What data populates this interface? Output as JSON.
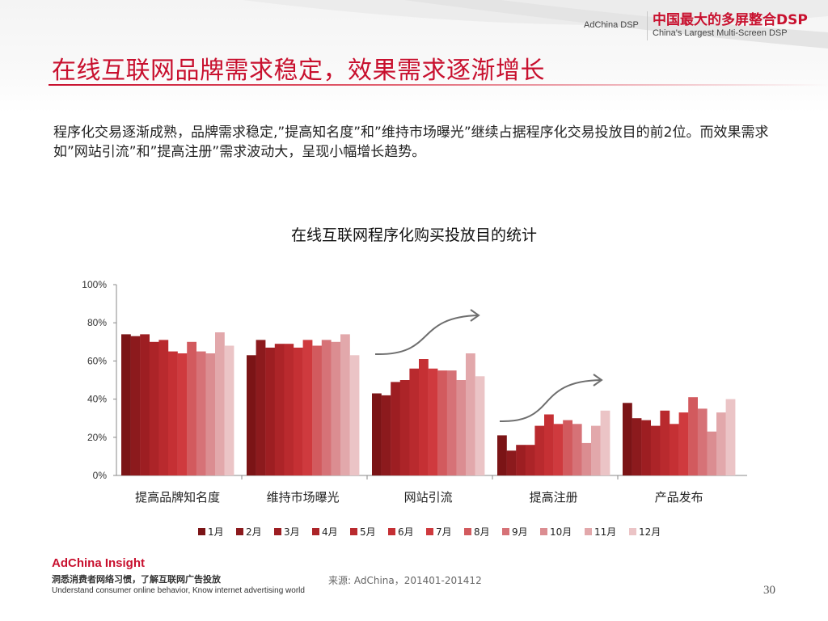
{
  "header": {
    "brand_left": "AdChina DSP",
    "brand_cn": "中国最大的多屏整合DSP",
    "brand_en": "China's Largest Multi-Screen DSP"
  },
  "title": "在线互联网品牌需求稳定，效果需求逐渐增长",
  "summary": "程序化交易逐渐成熟，品牌需求稳定,”提高知名度”和”维持市场曝光”继续占据程序化交易投放目的前2位。而效果需求如”网站引流”和”提高注册”需求波动大，呈现小幅增长趋势。",
  "chart_data": {
    "type": "bar",
    "title": "在线互联网程序化购买投放目的统计",
    "categories": [
      "提高品牌知名度",
      "维持市场曝光",
      "网站引流",
      "提高注册",
      "产品发布"
    ],
    "ylim": [
      0,
      100
    ],
    "yticks": [
      "0%",
      "20%",
      "40%",
      "60%",
      "80%",
      "100%"
    ],
    "grid": false,
    "legend_position": "bottom",
    "series": [
      {
        "name": "1月",
        "color": "#7b1416",
        "values": [
          74,
          63,
          43,
          21,
          38
        ]
      },
      {
        "name": "2月",
        "color": "#8c1a1d",
        "values": [
          73,
          71,
          42,
          13,
          30
        ]
      },
      {
        "name": "3月",
        "color": "#9d1e22",
        "values": [
          74,
          67,
          49,
          16,
          29
        ]
      },
      {
        "name": "4月",
        "color": "#ac2428",
        "values": [
          70,
          69,
          50,
          16,
          26
        ]
      },
      {
        "name": "5月",
        "color": "#b92a2e",
        "values": [
          71,
          69,
          56,
          26,
          34
        ]
      },
      {
        "name": "6月",
        "color": "#c53034",
        "values": [
          65,
          67,
          61,
          32,
          27
        ]
      },
      {
        "name": "7月",
        "color": "#cf3a3e",
        "values": [
          64,
          71,
          56,
          27,
          33
        ]
      },
      {
        "name": "8月",
        "color": "#d25a5e",
        "values": [
          70,
          68,
          55,
          29,
          41
        ]
      },
      {
        "name": "9月",
        "color": "#d67277",
        "values": [
          65,
          71,
          55,
          27,
          35
        ]
      },
      {
        "name": "10月",
        "color": "#db8d91",
        "values": [
          64,
          70,
          50,
          17,
          23
        ]
      },
      {
        "name": "11月",
        "color": "#e2a8ab",
        "values": [
          75,
          74,
          64,
          26,
          33
        ]
      },
      {
        "name": "12月",
        "color": "#ebc4c6",
        "values": [
          68,
          63,
          52,
          34,
          40
        ]
      }
    ]
  },
  "footer": {
    "brand": "AdChina Insight",
    "tagline_cn": "洞悉消费者网络习惯，了解互联网广告投放",
    "tagline_en": "Understand consumer online behavior, Know internet advertising world",
    "source": "来源: AdChina，201401-201412",
    "page": "30"
  }
}
